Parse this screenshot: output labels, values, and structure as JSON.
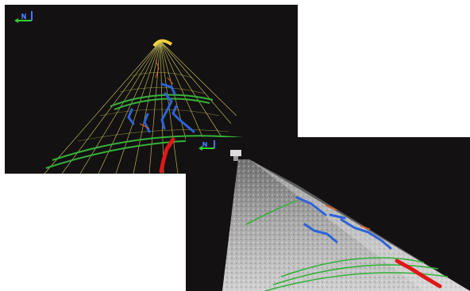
{
  "image": {
    "colors": {
      "background": "#131111",
      "wireframe": "#d8d060",
      "band_green": "#35b13b",
      "crack_blue": "#2c63d8",
      "crack_red": "#e01818",
      "crack_orange": "#e06020",
      "point_cloud": "#c9c9c9",
      "axis_green": "#32d232",
      "axis_blue": "#4a78ff"
    },
    "icons": [
      "axis-triad-icon",
      "axis-triad-icon",
      "scanner-icon"
    ]
  }
}
